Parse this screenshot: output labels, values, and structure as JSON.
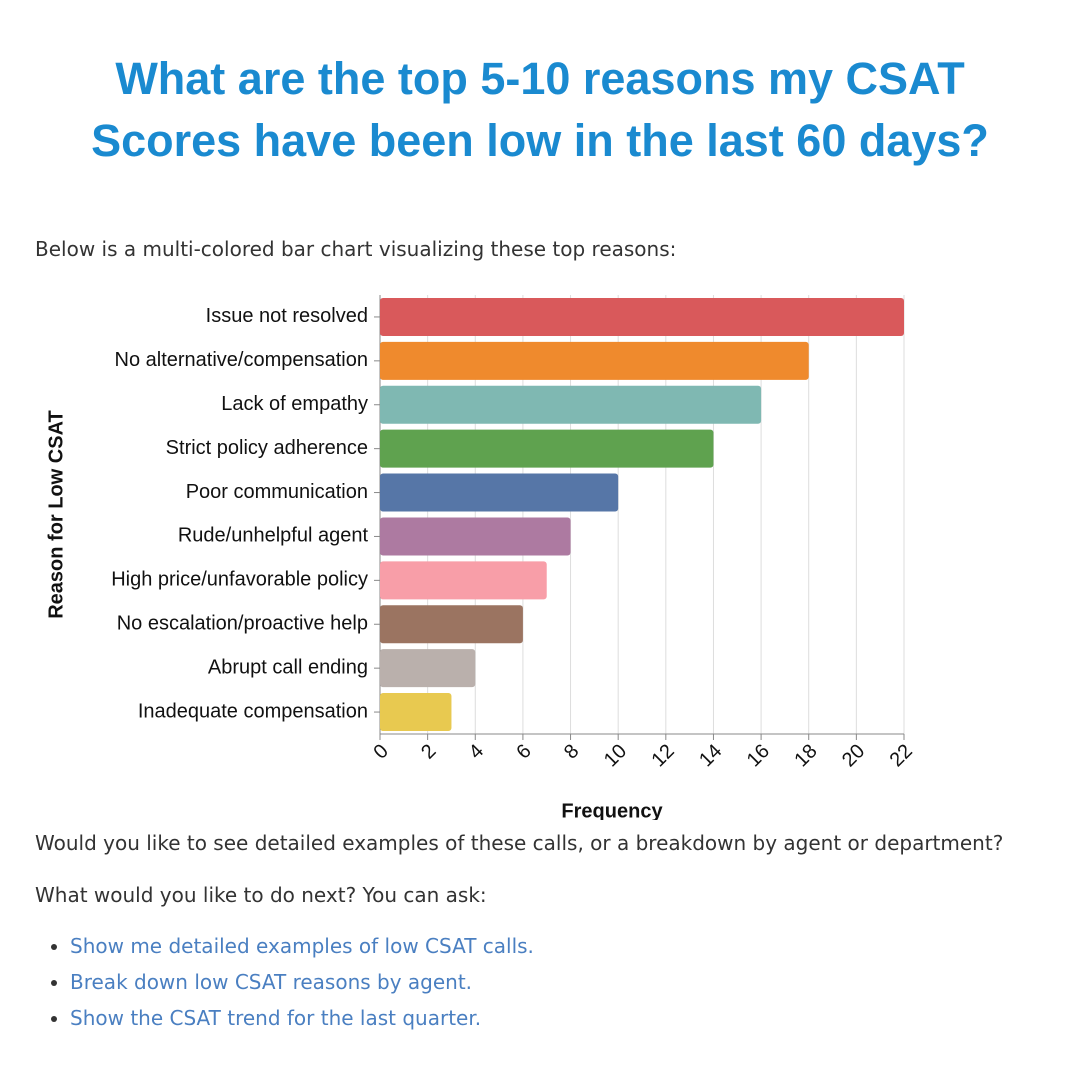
{
  "header": {
    "title": "What are the top 5-10 reasons my CSAT Scores have been low in the last 60 days?"
  },
  "intro": "Below is a multi-colored bar chart visualizing these top reasons:",
  "chart_data": {
    "type": "hbar",
    "categories": [
      "Issue not resolved",
      "No alternative/compensation",
      "Lack of empathy",
      "Strict policy adherence",
      "Poor communication",
      "Rude/unhelpful agent",
      "High price/unfavorable policy",
      "No escalation/proactive help",
      "Abrupt call ending",
      "Inadequate compensation"
    ],
    "values": [
      22,
      18,
      16,
      14,
      10,
      8,
      7,
      6,
      4,
      3
    ],
    "colors": [
      "#d9595b",
      "#ef8a2d",
      "#7fb8b2",
      "#5fa24f",
      "#5676a7",
      "#ad7aa1",
      "#f89ea8",
      "#9b7461",
      "#bab0ac",
      "#e8c950"
    ],
    "x_label": "Frequency",
    "y_label": "Reason for Low CSAT",
    "xlim": [
      0,
      22
    ],
    "xticks": [
      0,
      2,
      4,
      6,
      8,
      10,
      12,
      14,
      16,
      18,
      20,
      22
    ],
    "grid": true
  },
  "question": "Would you like to see detailed examples of these calls, or a breakdown by agent or department?",
  "prompt": "What would you like to do next? You can ask:",
  "suggestions": [
    "Show me detailed examples of low CSAT calls.",
    "Break down low CSAT reasons by agent.",
    "Show the CSAT trend for the last quarter."
  ]
}
